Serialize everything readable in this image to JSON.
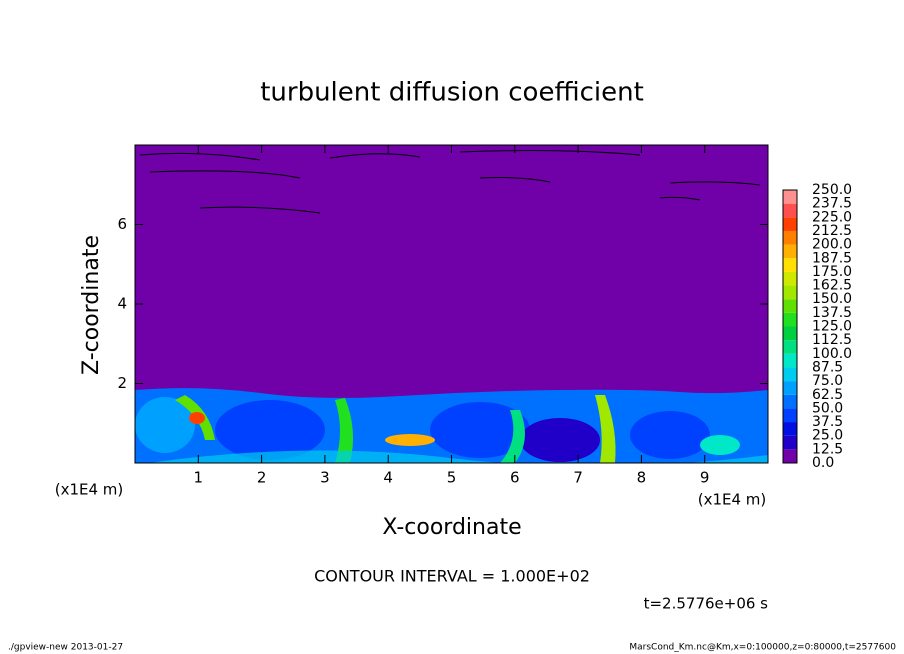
{
  "chart_data": {
    "type": "contour",
    "title": "turbulent diffusion coefficient",
    "xlabel": "X-coordinate",
    "ylabel": "Z-coordinate",
    "axis_unit": "(x1E4 m)",
    "xlim": [
      0,
      10
    ],
    "ylim": [
      0,
      8
    ],
    "xticks": [
      1,
      2,
      3,
      4,
      5,
      6,
      7,
      8,
      9
    ],
    "yticks": [
      2,
      4,
      6
    ],
    "field_color": "#7000a8",
    "colorbar": {
      "levels": [
        {
          "value": 0,
          "label": "0.0"
        },
        {
          "value": 12.5,
          "label": "12.5"
        },
        {
          "value": 25,
          "label": "25.0"
        },
        {
          "value": 37.5,
          "label": "37.5"
        },
        {
          "value": 50,
          "label": "50.0"
        },
        {
          "value": 62.5,
          "label": "62.5"
        },
        {
          "value": 75,
          "label": "75.0"
        },
        {
          "value": 87.5,
          "label": "87.5"
        },
        {
          "value": 100,
          "label": "100.0"
        },
        {
          "value": 112.5,
          "label": "112.5"
        },
        {
          "value": 125,
          "label": "125.0"
        },
        {
          "value": 137.5,
          "label": "137.5"
        },
        {
          "value": 150,
          "label": "150.0"
        },
        {
          "value": 162.5,
          "label": "162.5"
        },
        {
          "value": 175,
          "label": "175.0"
        },
        {
          "value": 187.5,
          "label": "187.5"
        },
        {
          "value": 200,
          "label": "200.0"
        },
        {
          "value": 212.5,
          "label": "212.5"
        },
        {
          "value": 225,
          "label": "225.0"
        },
        {
          "value": 237.5,
          "label": "237.5"
        },
        {
          "value": 250,
          "label": "250.0"
        }
      ],
      "colors": [
        "#7000a8",
        "#2000c8",
        "#0010e0",
        "#0040ff",
        "#0070ff",
        "#00a0ff",
        "#00ccf0",
        "#00e8c8",
        "#00e080",
        "#00d040",
        "#20e020",
        "#60e000",
        "#a0e800",
        "#d0e800",
        "#ffe000",
        "#ffb000",
        "#ff8000",
        "#ff4000",
        "#ff5050",
        "#ff9090"
      ]
    },
    "annotations": {
      "contour_interval": "CONTOUR INTERVAL = 1.000E+02",
      "time": "t=2.5776e+06 s",
      "footer_left": "./gpview-new  2013-01-27",
      "footer_right": "MarsCond_Km.nc@Km,x=0:100000,z=0:80000,t=2577600"
    }
  }
}
